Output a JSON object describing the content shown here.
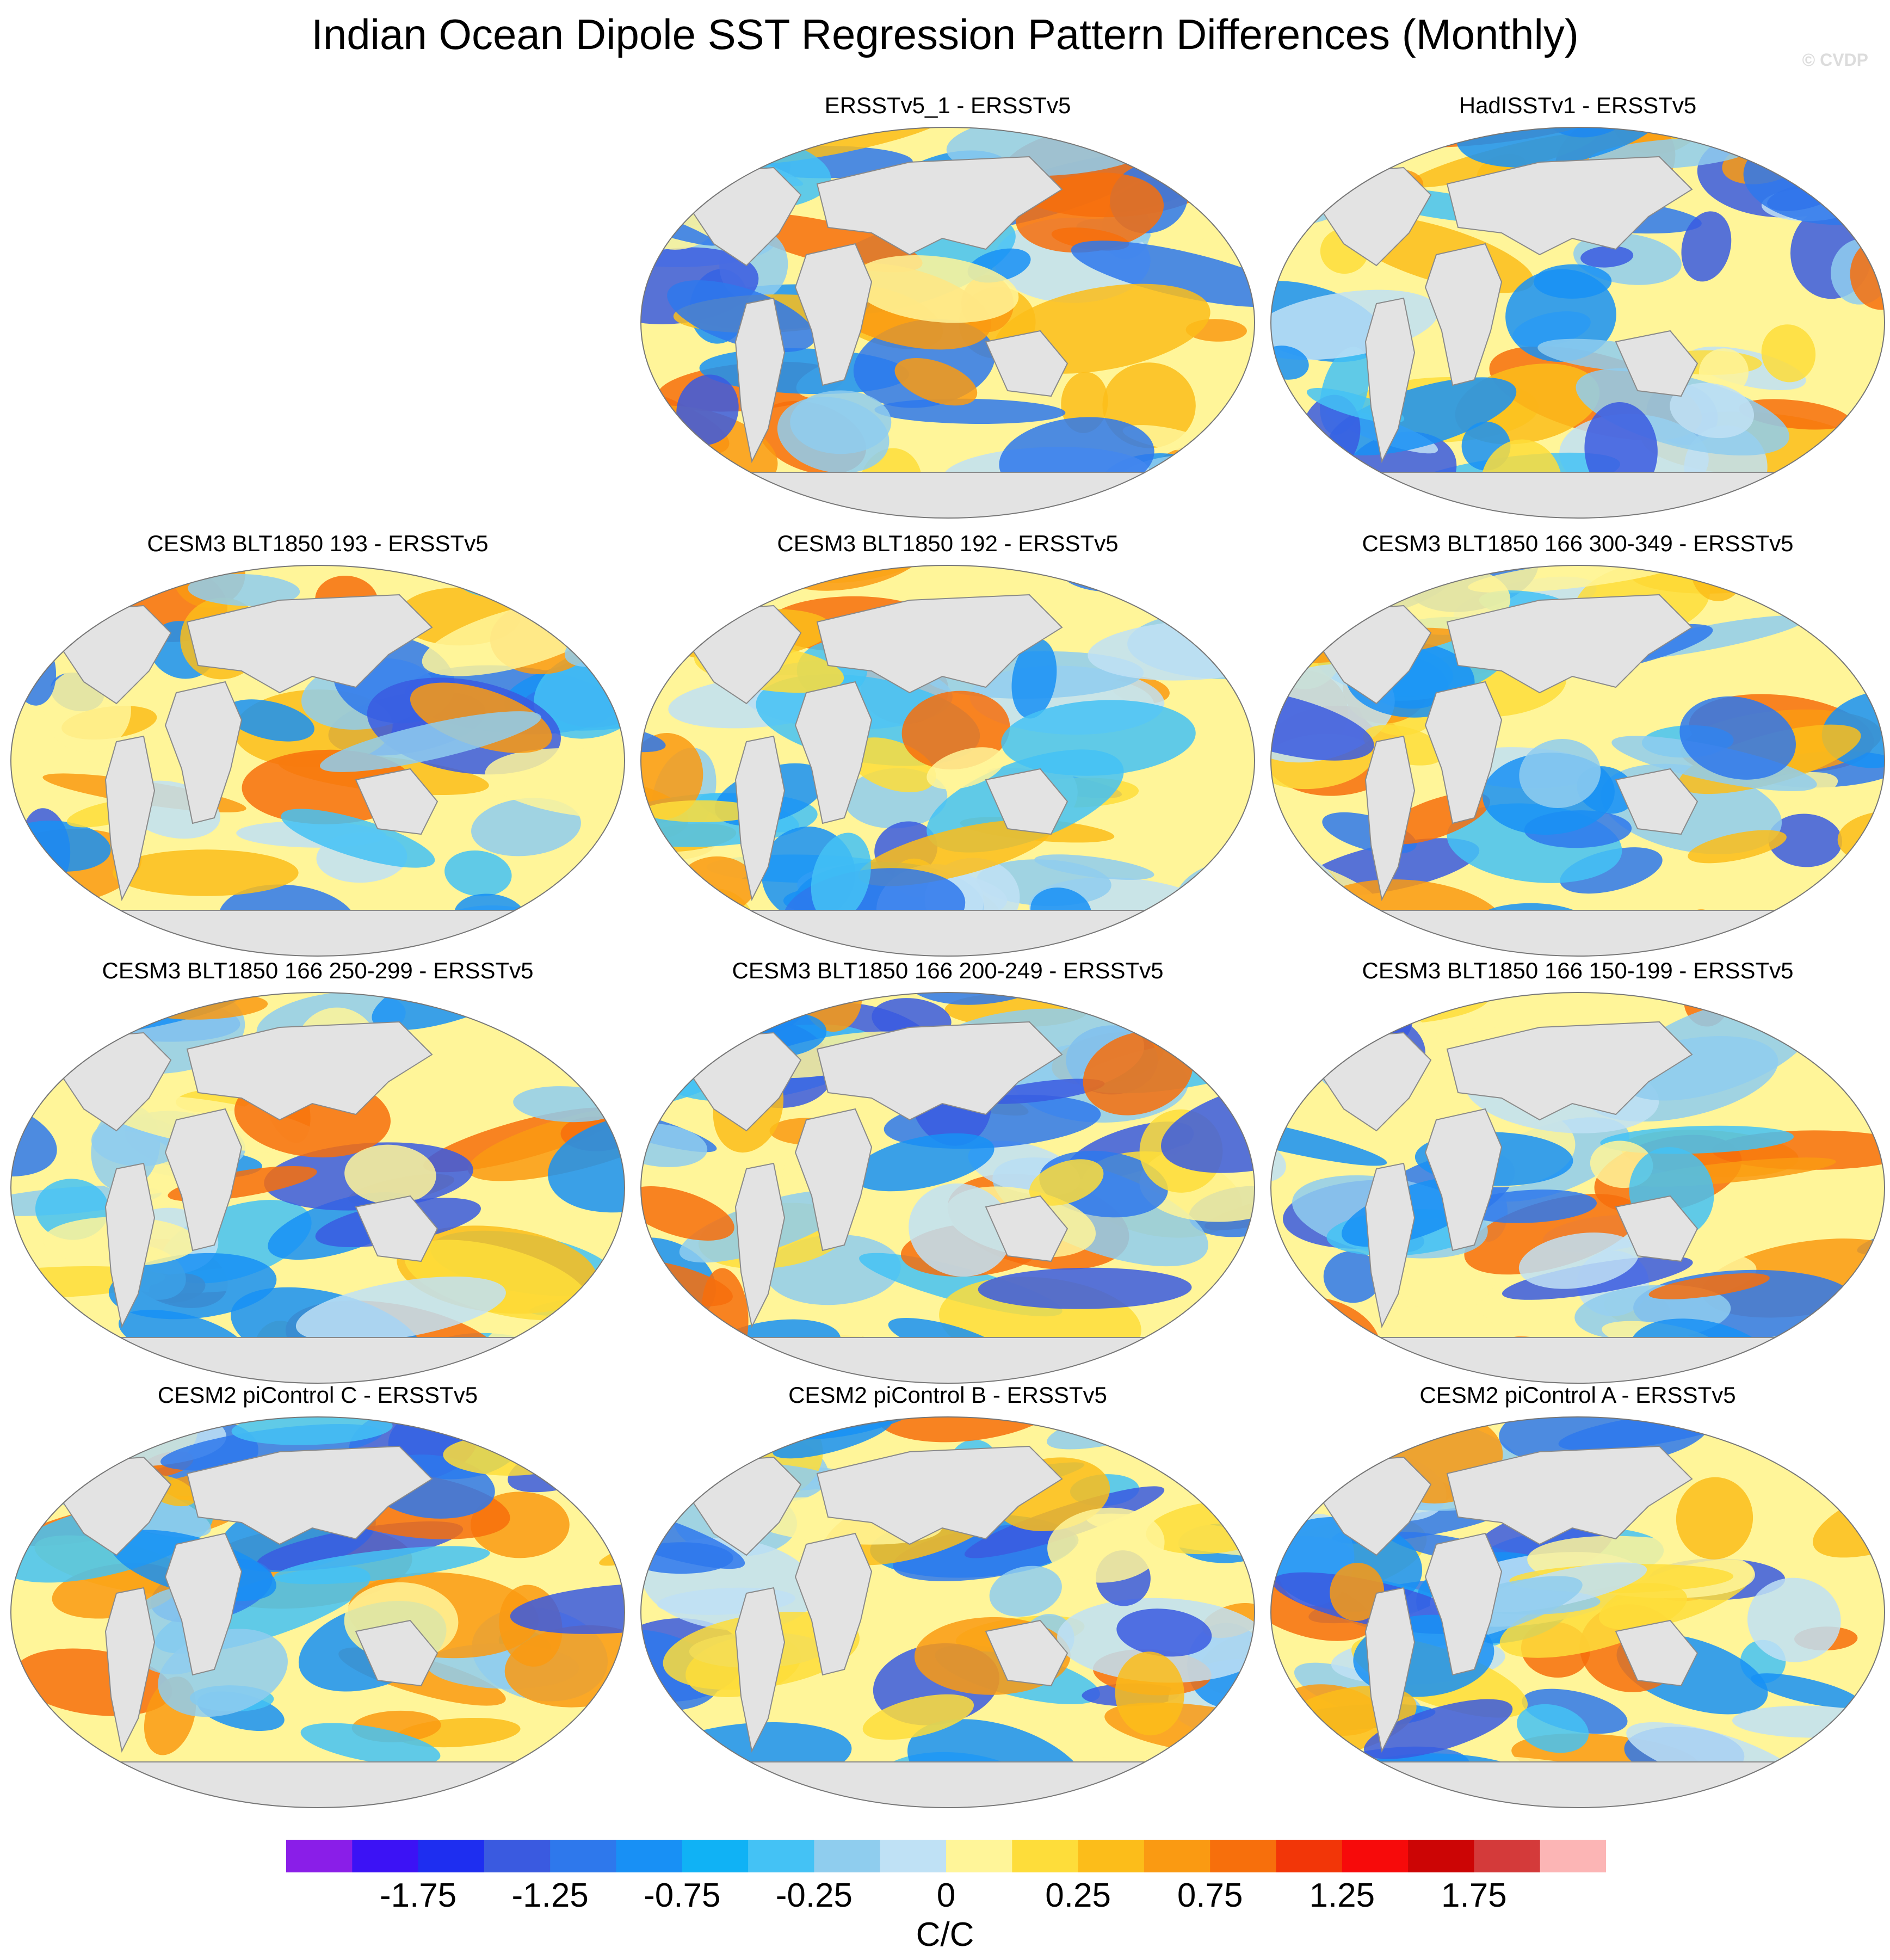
{
  "chart_data": {
    "type": "heatmap",
    "title": "Indian Ocean Dipole SST Regression Pattern Differences (Monthly)",
    "watermark": "© CVDP",
    "projection": "Robinson (global, centered on Pacific)",
    "panels": [
      {
        "title": "ERSSTv5_1 - ERSSTv5",
        "row": 0,
        "col": 1
      },
      {
        "title": "HadISSTv1 - ERSSTv5",
        "row": 0,
        "col": 2
      },
      {
        "title": "CESM3 BLT1850 193 - ERSSTv5",
        "row": 1,
        "col": 0
      },
      {
        "title": "CESM3 BLT1850 192 - ERSSTv5",
        "row": 1,
        "col": 1
      },
      {
        "title": "CESM3 BLT1850 166 300-349 - ERSSTv5",
        "row": 1,
        "col": 2
      },
      {
        "title": "CESM3 BLT1850 166 250-299 - ERSSTv5",
        "row": 2,
        "col": 0
      },
      {
        "title": "CESM3 BLT1850 166 200-249 - ERSSTv5",
        "row": 2,
        "col": 1
      },
      {
        "title": "CESM3 BLT1850 166 150-199 - ERSSTv5",
        "row": 2,
        "col": 2
      },
      {
        "title": "CESM2 piControl C - ERSSTv5",
        "row": 3,
        "col": 0
      },
      {
        "title": "CESM2 piControl B - ERSSTv5",
        "row": 3,
        "col": 1
      },
      {
        "title": "CESM2 piControl A - ERSSTv5",
        "row": 3,
        "col": 2
      }
    ],
    "colorbar": {
      "colors": [
        "#8a1ee8",
        "#3c12f5",
        "#1e2ef0",
        "#3a5ae0",
        "#2e78ec",
        "#1890f5",
        "#10b2f5",
        "#44c2f5",
        "#8fcdee",
        "#bfe1f5",
        "#fff599",
        "#fedd3a",
        "#fcbd1a",
        "#fa9a12",
        "#f76f0c",
        "#f23608",
        "#f70a0a",
        "#cc0505",
        "#d43a3a",
        "#fcb5b5"
      ],
      "labels": [
        "-1.75",
        "-1.25",
        "-0.75",
        "-0.25",
        "0",
        "0.25",
        "0.75",
        "1.25",
        "1.75"
      ],
      "units": "C/C"
    }
  }
}
